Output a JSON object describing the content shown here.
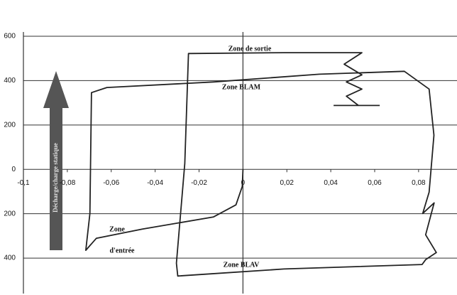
{
  "chart_data": {
    "type": "line",
    "x": [
      0,
      -0.0003,
      -0.0032,
      -0.0135,
      -0.0458,
      -0.0668,
      -0.0716,
      -0.0697,
      -0.069,
      -0.062,
      -0.0135,
      0.0348,
      0.0735,
      0.0848,
      0.087,
      0.0848,
      0.0819,
      0.0871,
      0.0832,
      0.0881,
      0.0832,
      0.0816,
      0.0187,
      -0.0297,
      -0.0303,
      -0.0265,
      -0.0248,
      0.0187,
      0.0542,
      0.0461,
      0.0542,
      0.0471,
      0.0542,
      0.0471,
      0.0526,
      null,
      0.0413,
      0.0623
    ],
    "values": [
      0,
      -77,
      -160,
      -215,
      -269,
      -311,
      -365,
      -199,
      346,
      369,
      394,
      429,
      442,
      362,
      154,
      -103,
      -199,
      -151,
      -295,
      -375,
      -407,
      -429,
      -449,
      -481,
      -423,
      26,
      522,
      526,
      526,
      474,
      426,
      394,
      362,
      330,
      288,
      null,
      288,
      288
    ],
    "color": "#222222",
    "xlim": [
      -0.1,
      0.0975
    ],
    "ylim": [
      -560,
      600
    ],
    "xticks": [
      {
        "value": -0.1,
        "label": "-0,1"
      },
      {
        "value": -0.08,
        "label": "-0,08"
      },
      {
        "value": -0.06,
        "label": "-0,06"
      },
      {
        "value": -0.04,
        "label": "-0,04"
      },
      {
        "value": -0.02,
        "label": "-0,02"
      },
      0,
      {
        "value": 0.02,
        "label": "0,02"
      },
      {
        "value": 0.04,
        "label": "0,04"
      },
      {
        "value": 0.06,
        "label": "0,06"
      },
      {
        "value": 0.08,
        "label": "0,08"
      }
    ],
    "yticks": [
      600,
      400,
      200,
      0,
      {
        "value": -200,
        "label": "200"
      },
      {
        "value": -400,
        "label": "400"
      }
    ],
    "grid": true,
    "annotations": [
      "Zone de sortie",
      "Zone BLAM",
      "Zone",
      "d'entrée",
      "Zone BLAV",
      "Décharge/charge statique"
    ]
  }
}
